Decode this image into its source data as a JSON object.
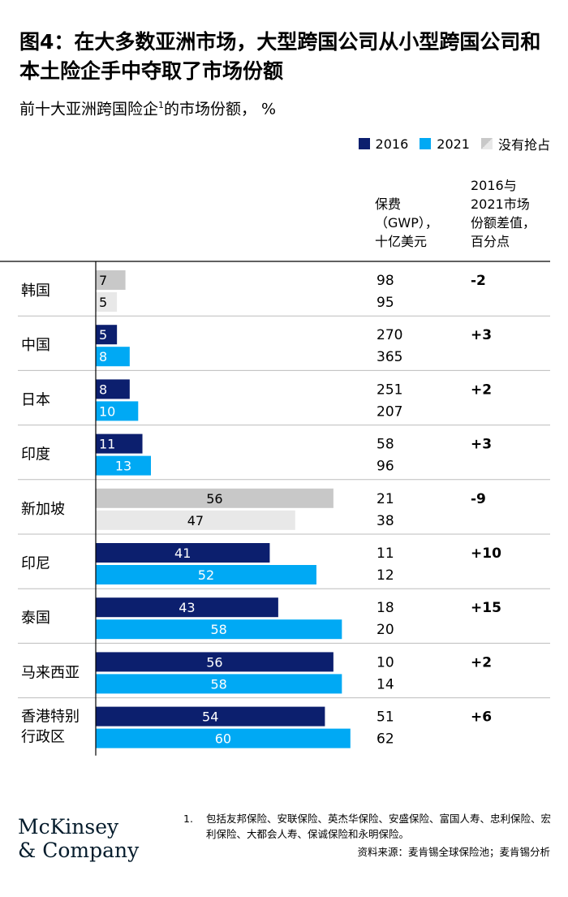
{
  "header": {
    "title": "图4：在大多数亚洲市场，大型跨国公司从小型跨国公司和本土险企手中夺取了市场份额",
    "subtitle_main": "前十大亚洲跨国险企",
    "subtitle_sup": "1",
    "subtitle_tail": "的市场份额，  %"
  },
  "legend": {
    "items": [
      {
        "label": "2016",
        "color": "#0c1f6e"
      },
      {
        "label": "2021",
        "color": "#00a9f4"
      },
      {
        "label": "没有抢占",
        "color": "#d7d7d7"
      }
    ]
  },
  "columns": {
    "gwp_header": [
      "保费",
      "（GWP），",
      "十亿美元"
    ],
    "diff_header": [
      "2016与",
      "2021市场",
      "份额差值，",
      "百分点"
    ]
  },
  "colors": {
    "c2016": "#0c1f6e",
    "c2021": "#00a9f4",
    "gray2016": "#c8c8c8",
    "gray2021": "#e8e8e8"
  },
  "chart_data": {
    "type": "bar",
    "orientation": "horizontal",
    "series": [
      {
        "name": "2016"
      },
      {
        "name": "2021"
      }
    ],
    "rows": [
      {
        "label": [
          "韩国"
        ],
        "v2016": 7,
        "v2021": 5,
        "gwp2016": "98",
        "gwp2021": "95",
        "diff": "-2",
        "gray": true
      },
      {
        "label": [
          "中国"
        ],
        "v2016": 5,
        "v2021": 8,
        "gwp2016": "270",
        "gwp2021": "365",
        "diff": "+3",
        "gray": false
      },
      {
        "label": [
          "日本"
        ],
        "v2016": 8,
        "v2021": 10,
        "gwp2016": "251",
        "gwp2021": "207",
        "diff": "+2",
        "gray": false
      },
      {
        "label": [
          "印度"
        ],
        "v2016": 11,
        "v2021": 13,
        "gwp2016": "58",
        "gwp2021": "96",
        "diff": "+3",
        "gray": false
      },
      {
        "label": [
          "新加坡"
        ],
        "v2016": 56,
        "v2021": 47,
        "gwp2016": "21",
        "gwp2021": "38",
        "diff": "-9",
        "gray": true
      },
      {
        "label": [
          "印尼"
        ],
        "v2016": 41,
        "v2021": 52,
        "gwp2016": "11",
        "gwp2021": "12",
        "diff": "+10",
        "gray": false
      },
      {
        "label": [
          "泰国"
        ],
        "v2016": 43,
        "v2021": 58,
        "gwp2016": "18",
        "gwp2021": "20",
        "diff": "+15",
        "gray": false
      },
      {
        "label": [
          "马来西亚"
        ],
        "v2016": 56,
        "v2021": 58,
        "gwp2016": "10",
        "gwp2021": "14",
        "diff": "+2",
        "gray": false
      },
      {
        "label": [
          "香港特别",
          "行政区"
        ],
        "v2016": 54,
        "v2021": 60,
        "gwp2016": "51",
        "gwp2021": "62",
        "diff": "+6",
        "gray": false
      }
    ],
    "xlim": [
      0,
      60
    ]
  },
  "footer": {
    "footnote_num": "1.",
    "footnote_text": "包括友邦保险、安联保险、英杰华保险、安盛保险、富国人寿、忠利保险、宏利保险、大都会人寿、保诚保险和永明保险。",
    "source": "资料来源：麦肯锡全球保险池；麦肯锡分析",
    "logo_line1": "McKinsey",
    "logo_line2": "& Company"
  }
}
